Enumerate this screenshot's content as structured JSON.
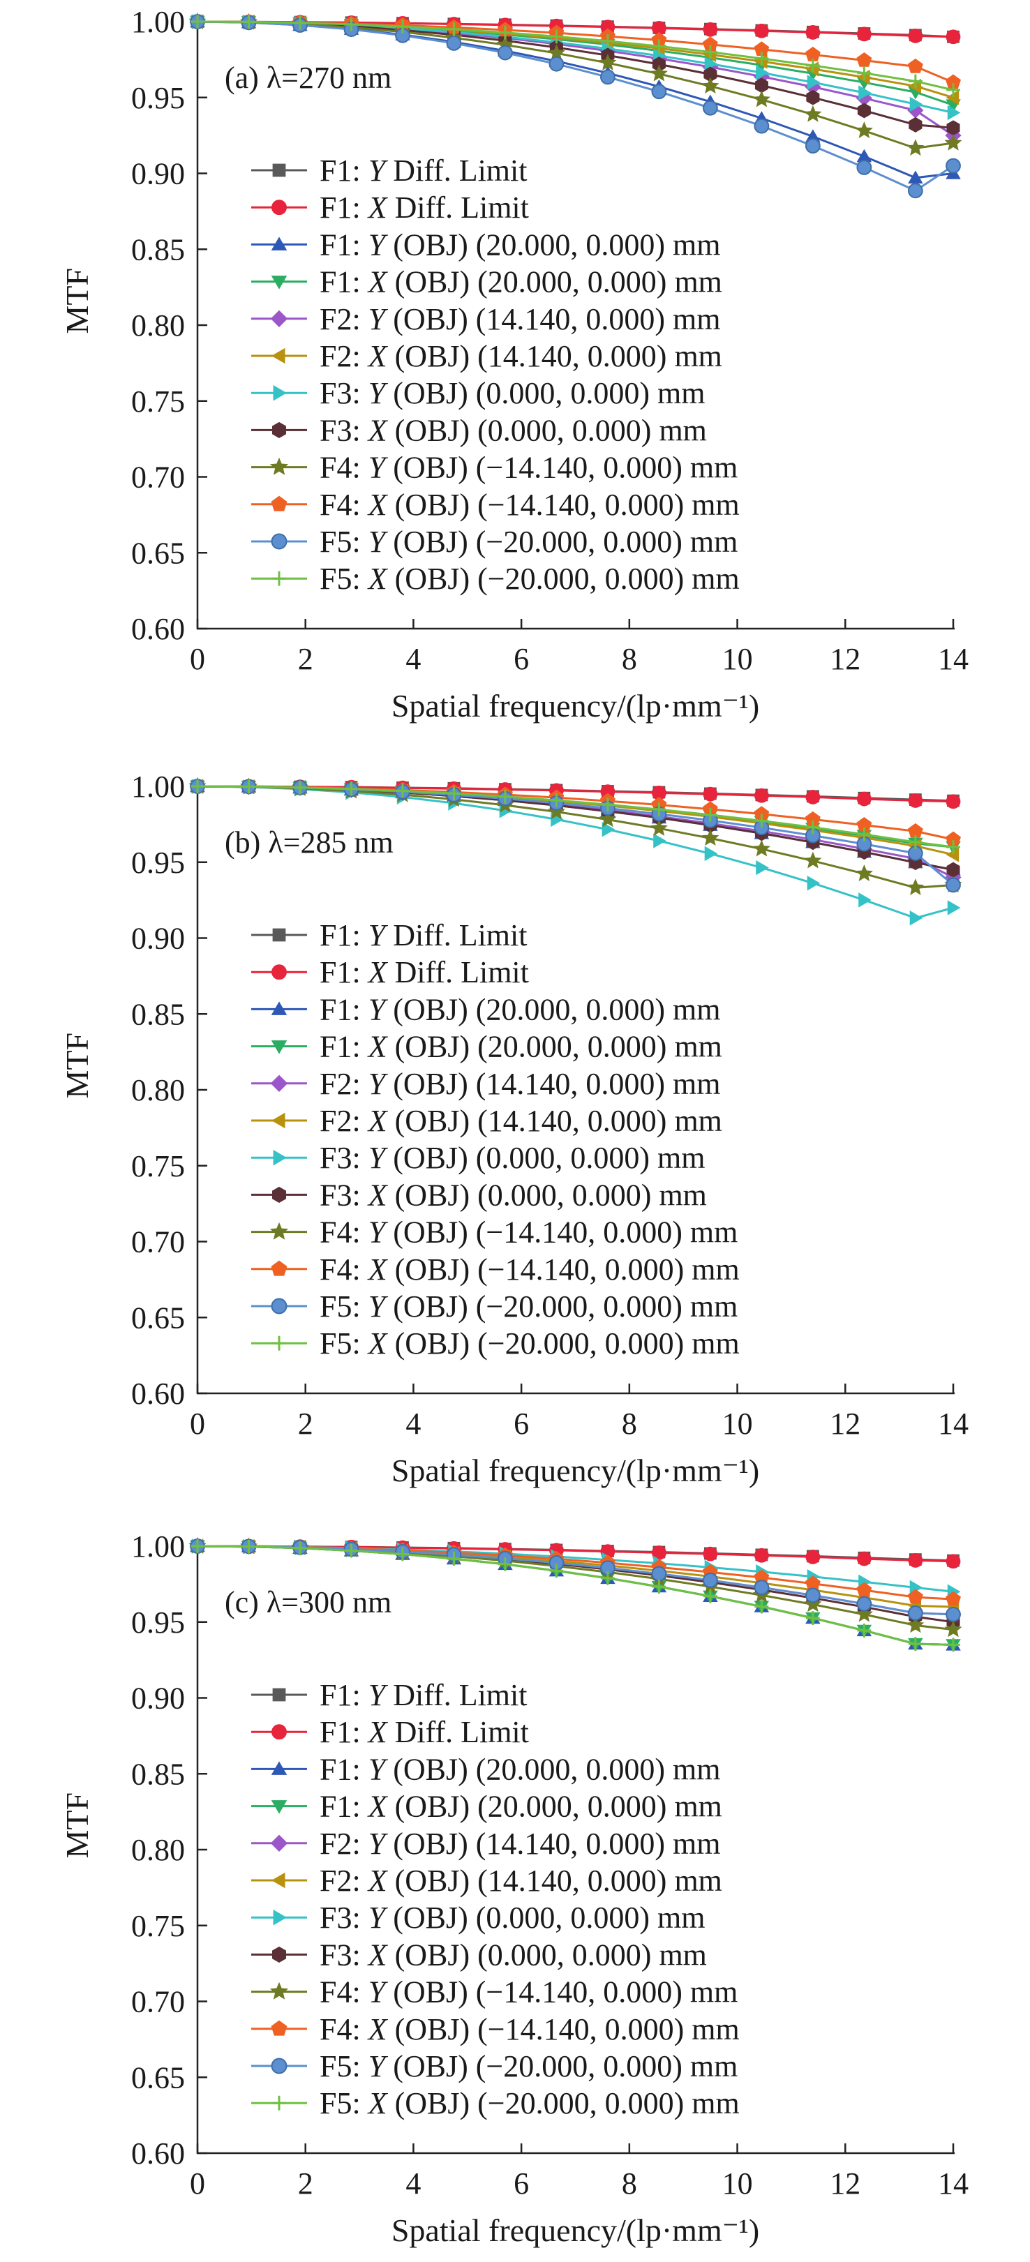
{
  "chart_data": [
    {
      "type": "line",
      "panel_label": "(a) λ=270 nm",
      "xlabel": "Spatial frequency/(lp·mm⁻¹)",
      "ylabel": "MTF",
      "xlim": [
        0,
        14
      ],
      "ylim": [
        0.6,
        1.0
      ],
      "xticks": [
        "0",
        "2",
        "4",
        "6",
        "8",
        "10",
        "12",
        "14"
      ],
      "yticks": [
        "0.60",
        "0.65",
        "0.70",
        "0.75",
        "0.80",
        "0.85",
        "0.90",
        "0.95",
        "1.00"
      ],
      "grid": false,
      "legend_position": "left",
      "x": [
        0,
        0.95,
        1.9,
        2.85,
        3.8,
        4.75,
        5.7,
        6.65,
        7.6,
        8.55,
        9.5,
        10.45,
        11.4,
        12.35,
        13.3,
        14.0
      ],
      "series": [
        {
          "name": "F1: Y Diff. Limit",
          "values": [
            1.0,
            0.9999,
            0.9997,
            0.9994,
            0.999,
            0.9985,
            0.998,
            0.9974,
            0.9967,
            0.9959,
            0.9951,
            0.9942,
            0.9932,
            0.9922,
            0.9911,
            0.99
          ]
        },
        {
          "name": "F1: X Diff. Limit",
          "values": [
            1.0,
            0.9998,
            0.9996,
            0.9993,
            0.9989,
            0.9984,
            0.9978,
            0.9972,
            0.9965,
            0.9957,
            0.9948,
            0.9939,
            0.9929,
            0.9918,
            0.9906,
            0.99
          ]
        },
        {
          "name": "F1: Y (OBJ) (20.000, 0.000) mm",
          "values": [
            1.0,
            0.9994,
            0.9977,
            0.9951,
            0.9914,
            0.9866,
            0.9808,
            0.974,
            0.9661,
            0.9572,
            0.9472,
            0.9363,
            0.9243,
            0.9112,
            0.8971,
            0.9
          ]
        },
        {
          "name": "F1: X (OBJ) (20.000, 0.000) mm",
          "values": [
            1.0,
            0.9998,
            0.9991,
            0.998,
            0.9963,
            0.9941,
            0.9915,
            0.9884,
            0.9849,
            0.9808,
            0.9763,
            0.9713,
            0.9658,
            0.9599,
            0.9535,
            0.945
          ]
        },
        {
          "name": "F2: Y (OBJ) (14.140, 0.000) mm",
          "values": [
            1.0,
            0.9997,
            0.9988,
            0.9973,
            0.9952,
            0.9925,
            0.9892,
            0.9853,
            0.9808,
            0.9757,
            0.9701,
            0.9638,
            0.957,
            0.9495,
            0.9415,
            0.925
          ]
        },
        {
          "name": "F2: X (OBJ) (14.140, 0.000) mm",
          "values": [
            1.0,
            0.9998,
            0.9991,
            0.998,
            0.9965,
            0.9946,
            0.9922,
            0.9893,
            0.9861,
            0.9824,
            0.9783,
            0.9738,
            0.9688,
            0.9634,
            0.9575,
            0.95
          ]
        },
        {
          "name": "F3: Y (OBJ) (0.000, 0.000) mm",
          "values": [
            1.0,
            0.9997,
            0.9989,
            0.9975,
            0.9956,
            0.9931,
            0.99,
            0.9864,
            0.9822,
            0.9775,
            0.9722,
            0.9664,
            0.96,
            0.9531,
            0.9456,
            0.94
          ]
        },
        {
          "name": "F3: X (OBJ) (0.000, 0.000) mm",
          "values": [
            1.0,
            0.9996,
            0.9986,
            0.9969,
            0.9944,
            0.9913,
            0.9875,
            0.983,
            0.9778,
            0.9719,
            0.9653,
            0.958,
            0.95,
            0.9414,
            0.932,
            0.93
          ]
        },
        {
          "name": "F4: Y (OBJ) (−14.140, 0.000) mm",
          "values": [
            1.0,
            0.9996,
            0.9983,
            0.9962,
            0.9932,
            0.9894,
            0.9847,
            0.9792,
            0.9728,
            0.9656,
            0.9575,
            0.9486,
            0.9388,
            0.9281,
            0.9166,
            0.92
          ]
        },
        {
          "name": "F4: X (OBJ) (−14.140, 0.000) mm",
          "values": [
            1.0,
            0.9998,
            0.9994,
            0.9986,
            0.9976,
            0.9962,
            0.9945,
            0.9926,
            0.9903,
            0.9878,
            0.9849,
            0.9817,
            0.9782,
            0.9745,
            0.9704,
            0.96
          ]
        },
        {
          "name": "F5: Y (OBJ) (−20.000, 0.000) mm",
          "values": [
            1.0,
            0.9994,
            0.9977,
            0.9949,
            0.9909,
            0.9858,
            0.9795,
            0.9721,
            0.9635,
            0.9539,
            0.9431,
            0.9312,
            0.9181,
            0.9039,
            0.8886,
            0.905
          ]
        },
        {
          "name": "F5: X (OBJ) (−20.000, 0.000) mm",
          "values": [
            1.0,
            0.9998,
            0.9992,
            0.9982,
            0.9968,
            0.995,
            0.9928,
            0.9902,
            0.9872,
            0.9838,
            0.98,
            0.9757,
            0.9711,
            0.9661,
            0.9607,
            0.955
          ]
        }
      ]
    },
    {
      "type": "line",
      "panel_label": "(b) λ=285 nm",
      "xlabel": "Spatial frequency/(lp·mm⁻¹)",
      "ylabel": "MTF",
      "xlim": [
        0,
        14
      ],
      "ylim": [
        0.6,
        1.0
      ],
      "xticks": [
        "0",
        "2",
        "4",
        "6",
        "8",
        "10",
        "12",
        "14"
      ],
      "yticks": [
        "0.60",
        "0.65",
        "0.70",
        "0.75",
        "0.80",
        "0.85",
        "0.90",
        "0.95",
        "1.00"
      ],
      "grid": false,
      "legend_position": "left",
      "x": [
        0,
        0.95,
        1.9,
        2.85,
        3.8,
        4.75,
        5.7,
        6.65,
        7.6,
        8.55,
        9.5,
        10.45,
        11.4,
        12.35,
        13.3,
        14.0
      ],
      "series": [
        {
          "name": "F1: Y Diff. Limit",
          "values": [
            1.0,
            0.9999,
            0.9997,
            0.9995,
            0.9991,
            0.9987,
            0.9981,
            0.9975,
            0.9968,
            0.9961,
            0.9952,
            0.9943,
            0.9934,
            0.9923,
            0.9912,
            0.9905
          ]
        },
        {
          "name": "F1: X Diff. Limit",
          "values": [
            1.0,
            0.9999,
            0.9997,
            0.9994,
            0.999,
            0.9985,
            0.9979,
            0.9973,
            0.9965,
            0.9957,
            0.9949,
            0.9939,
            0.9929,
            0.9917,
            0.9906,
            0.99
          ]
        },
        {
          "name": "F1: Y (OBJ) (20.000, 0.000) mm",
          "values": [
            1.0,
            0.9997,
            0.999,
            0.9977,
            0.9959,
            0.9936,
            0.9908,
            0.9875,
            0.9836,
            0.9793,
            0.9744,
            0.969,
            0.9631,
            0.9567,
            0.9498,
            0.945
          ]
        },
        {
          "name": "F1: X (OBJ) (20.000, 0.000) mm",
          "values": [
            1.0,
            0.9998,
            0.9992,
            0.9983,
            0.9969,
            0.9952,
            0.9931,
            0.9906,
            0.9877,
            0.9844,
            0.9808,
            0.9767,
            0.9723,
            0.9675,
            0.9623,
            0.96
          ]
        },
        {
          "name": "F2: Y (OBJ) (14.140, 0.000) mm",
          "values": [
            1.0,
            0.9997,
            0.999,
            0.9978,
            0.9961,
            0.9939,
            0.9912,
            0.988,
            0.9843,
            0.9802,
            0.9756,
            0.9705,
            0.9649,
            0.9588,
            0.9523,
            0.94
          ]
        },
        {
          "name": "F2: X (OBJ) (14.140, 0.000) mm",
          "values": [
            1.0,
            0.9998,
            0.9992,
            0.9982,
            0.9968,
            0.995,
            0.9928,
            0.9902,
            0.9872,
            0.9838,
            0.98,
            0.9757,
            0.9711,
            0.9661,
            0.9607,
            0.955
          ]
        },
        {
          "name": "F3: Y (OBJ) (0.000, 0.000) mm",
          "values": [
            1.0,
            0.9996,
            0.9982,
            0.996,
            0.9929,
            0.9889,
            0.984,
            0.9782,
            0.9716,
            0.9641,
            0.9557,
            0.9464,
            0.9362,
            0.9251,
            0.9132,
            0.92
          ]
        },
        {
          "name": "F3: X (OBJ) (0.000, 0.000) mm",
          "values": [
            1.0,
            0.9997,
            0.999,
            0.9977,
            0.9959,
            0.9936,
            0.9908,
            0.9875,
            0.9836,
            0.9793,
            0.9744,
            0.969,
            0.9631,
            0.9567,
            0.9498,
            0.945
          ]
        },
        {
          "name": "F4: Y (OBJ) (−14.140, 0.000) mm",
          "values": [
            1.0,
            0.9997,
            0.9986,
            0.9969,
            0.9945,
            0.9914,
            0.9876,
            0.9832,
            0.9781,
            0.9723,
            0.9658,
            0.9587,
            0.9509,
            0.9424,
            0.9332,
            0.935
          ]
        },
        {
          "name": "F4: X (OBJ) (−14.140, 0.000) mm",
          "values": [
            1.0,
            0.9998,
            0.9994,
            0.9986,
            0.9976,
            0.9962,
            0.9945,
            0.9926,
            0.9903,
            0.9878,
            0.9849,
            0.9817,
            0.9782,
            0.9745,
            0.9704,
            0.965
          ]
        },
        {
          "name": "F5: Y (OBJ) (−20.000, 0.000) mm",
          "values": [
            1.0,
            0.9998,
            0.9991,
            0.998,
            0.9964,
            0.9944,
            0.9919,
            0.989,
            0.9856,
            0.9818,
            0.9775,
            0.9728,
            0.9676,
            0.962,
            0.9559,
            0.935
          ]
        },
        {
          "name": "F5: X (OBJ) (−20.000, 0.000) mm",
          "values": [
            1.0,
            0.9998,
            0.9992,
            0.9983,
            0.997,
            0.9953,
            0.9932,
            0.9908,
            0.988,
            0.9848,
            0.9812,
            0.9773,
            0.973,
            0.9683,
            0.9632,
            0.96
          ]
        }
      ]
    },
    {
      "type": "line",
      "panel_label": "(c) λ=300 nm",
      "xlabel": "Spatial frequency/(lp·mm⁻¹)",
      "ylabel": "MTF",
      "xlim": [
        0,
        14
      ],
      "ylim": [
        0.6,
        1.0
      ],
      "xticks": [
        "0",
        "2",
        "4",
        "6",
        "8",
        "10",
        "12",
        "14"
      ],
      "yticks": [
        "0.60",
        "0.65",
        "0.70",
        "0.75",
        "0.80",
        "0.85",
        "0.90",
        "0.95",
        "1.00"
      ],
      "grid": false,
      "legend_position": "left",
      "x": [
        0,
        0.95,
        1.9,
        2.85,
        3.8,
        4.75,
        5.7,
        6.65,
        7.6,
        8.55,
        9.5,
        10.45,
        11.4,
        12.35,
        13.3,
        14.0
      ],
      "series": [
        {
          "name": "F1: Y Diff. Limit",
          "values": [
            1.0,
            0.9999,
            0.9997,
            0.9995,
            0.9991,
            0.9987,
            0.9981,
            0.9975,
            0.9968,
            0.9961,
            0.9952,
            0.9943,
            0.9934,
            0.9923,
            0.9912,
            0.9905
          ]
        },
        {
          "name": "F1: X Diff. Limit",
          "values": [
            1.0,
            0.9999,
            0.9997,
            0.9994,
            0.999,
            0.9985,
            0.9979,
            0.9973,
            0.9965,
            0.9957,
            0.9949,
            0.9939,
            0.9929,
            0.9917,
            0.9906,
            0.99
          ]
        },
        {
          "name": "F1: Y (OBJ) (20.000, 0.000) mm",
          "values": [
            1.0,
            0.9997,
            0.9987,
            0.997,
            0.9947,
            0.9917,
            0.9881,
            0.9838,
            0.9789,
            0.9733,
            0.967,
            0.9602,
            0.9526,
            0.9444,
            0.9356,
            0.935
          ]
        },
        {
          "name": "F1: X (OBJ) (20.000, 0.000) mm",
          "values": [
            1.0,
            0.9997,
            0.9987,
            0.997,
            0.9947,
            0.9917,
            0.9881,
            0.9838,
            0.9789,
            0.9733,
            0.967,
            0.9602,
            0.9526,
            0.9444,
            0.9356,
            0.935
          ]
        },
        {
          "name": "F2: Y (OBJ) (14.140, 0.000) mm",
          "values": [
            1.0,
            0.9998,
            0.9991,
            0.998,
            0.9964,
            0.9944,
            0.9919,
            0.989,
            0.9856,
            0.9818,
            0.9775,
            0.9728,
            0.9676,
            0.962,
            0.9559,
            0.955
          ]
        },
        {
          "name": "F2: X (OBJ) (14.140, 0.000) mm",
          "values": [
            1.0,
            0.9998,
            0.9992,
            0.9982,
            0.9968,
            0.995,
            0.9928,
            0.9902,
            0.9872,
            0.9838,
            0.98,
            0.9757,
            0.9711,
            0.9661,
            0.9607,
            0.96
          ]
        },
        {
          "name": "F3: Y (OBJ) (0.000, 0.000) mm",
          "values": [
            1.0,
            0.9998,
            0.9994,
            0.9987,
            0.9977,
            0.9965,
            0.995,
            0.9931,
            0.991,
            0.9887,
            0.986,
            0.9831,
            0.9799,
            0.9764,
            0.9727,
            0.97
          ]
        },
        {
          "name": "F3: X (OBJ) (0.000, 0.000) mm",
          "values": [
            1.0,
            0.9998,
            0.999,
            0.9978,
            0.9962,
            0.994,
            0.9914,
            0.9883,
            0.9847,
            0.9807,
            0.9762,
            0.9712,
            0.9658,
            0.9599,
            0.9535,
            0.95
          ]
        },
        {
          "name": "F4: Y (OBJ) (−14.140, 0.000) mm",
          "values": [
            1.0,
            0.9997,
            0.9989,
            0.9976,
            0.9957,
            0.9933,
            0.9904,
            0.9869,
            0.9829,
            0.9784,
            0.9733,
            0.9677,
            0.9616,
            0.955,
            0.9478,
            0.945
          ]
        },
        {
          "name": "F4: X (OBJ) (−14.140, 0.000) mm",
          "values": [
            1.0,
            0.9998,
            0.9993,
            0.9985,
            0.9973,
            0.9957,
            0.9939,
            0.9916,
            0.989,
            0.9861,
            0.9829,
            0.9793,
            0.9753,
            0.971,
            0.9664,
            0.965
          ]
        },
        {
          "name": "F5: Y (OBJ) (−20.000, 0.000) mm",
          "values": [
            1.0,
            0.9998,
            0.9991,
            0.998,
            0.9964,
            0.9944,
            0.9919,
            0.989,
            0.9856,
            0.9818,
            0.9775,
            0.9728,
            0.9676,
            0.962,
            0.9559,
            0.955
          ]
        },
        {
          "name": "F5: X (OBJ) (−20.000, 0.000) mm",
          "values": [
            1.0,
            0.9997,
            0.9987,
            0.997,
            0.9947,
            0.9917,
            0.9881,
            0.9838,
            0.9789,
            0.9733,
            0.967,
            0.9602,
            0.9526,
            0.9444,
            0.9356,
            0.935
          ]
        }
      ]
    }
  ],
  "series_styles": [
    {
      "color": "#595959",
      "marker": "square"
    },
    {
      "color": "#e8233c",
      "marker": "circle"
    },
    {
      "color": "#2e58b5",
      "marker": "triangle-up"
    },
    {
      "color": "#2bad63",
      "marker": "triangle-down"
    },
    {
      "color": "#9b57c9",
      "marker": "diamond"
    },
    {
      "color": "#b8910f",
      "marker": "triangle-left"
    },
    {
      "color": "#35c2c7",
      "marker": "triangle-right"
    },
    {
      "color": "#5a2f35",
      "marker": "hexagon"
    },
    {
      "color": "#6e7b23",
      "marker": "star"
    },
    {
      "color": "#ef6023",
      "marker": "pentagon"
    },
    {
      "color": "#5c8fd0",
      "marker": "circle-shaded"
    },
    {
      "color": "#6fc041",
      "marker": "plus"
    }
  ],
  "legend_entries": [
    {
      "label": "F1: ",
      "axis": "Y",
      "rest": " Diff. Limit"
    },
    {
      "label": "F1: ",
      "axis": "X",
      "rest": " Diff. Limit"
    },
    {
      "label": "F1: ",
      "axis": "Y",
      "rest": " (OBJ) (20.000, 0.000) mm"
    },
    {
      "label": "F1: ",
      "axis": "X",
      "rest": " (OBJ) (20.000, 0.000) mm"
    },
    {
      "label": "F2: ",
      "axis": "Y",
      "rest": " (OBJ) (14.140, 0.000) mm"
    },
    {
      "label": "F2: ",
      "axis": "X",
      "rest": " (OBJ) (14.140, 0.000) mm"
    },
    {
      "label": "F3: ",
      "axis": "Y",
      "rest": " (OBJ) (0.000, 0.000) mm"
    },
    {
      "label": "F3: ",
      "axis": "X",
      "rest": " (OBJ) (0.000, 0.000) mm"
    },
    {
      "label": "F4: ",
      "axis": "Y",
      "rest": " (OBJ) (−14.140, 0.000) mm"
    },
    {
      "label": "F4: ",
      "axis": "X",
      "rest": " (OBJ) (−14.140, 0.000) mm"
    },
    {
      "label": "F5: ",
      "axis": "Y",
      "rest": " (OBJ) (−20.000, 0.000) mm"
    },
    {
      "label": "F5: ",
      "axis": "X",
      "rest": " (OBJ) (−20.000, 0.000) mm"
    }
  ]
}
